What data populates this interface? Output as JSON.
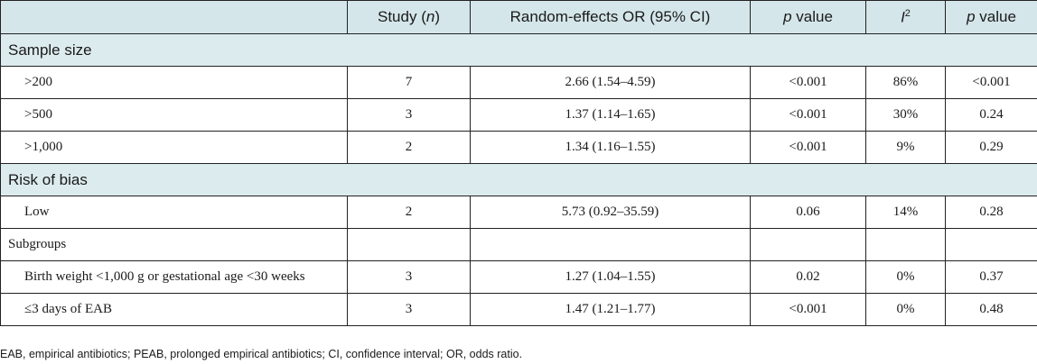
{
  "header": {
    "study_label": "Study (",
    "study_n": "n",
    "study_close": ")",
    "or_label": "Random-effects OR (95% CI)",
    "p_italic": "p",
    "p_suffix": " value",
    "i_italic": "I",
    "i_sup": "2",
    "p2_italic": "p",
    "p2_suffix": " value"
  },
  "sections": [
    {
      "title": "Sample size",
      "rows": [
        {
          "label": ">200",
          "study": "7",
          "or": "2.66 (1.54–4.59)",
          "p": "<0.001",
          "i2": "86%",
          "p2": "<0.001"
        },
        {
          "label": ">500",
          "study": "3",
          "or": "1.37 (1.14–1.65)",
          "p": "<0.001",
          "i2": "30%",
          "p2": "0.24"
        },
        {
          "label": ">1,000",
          "study": "2",
          "or": "1.34 (1.16–1.55)",
          "p": "<0.001",
          "i2": "9%",
          "p2": "0.29"
        }
      ]
    },
    {
      "title": "Risk of bias",
      "rows": [
        {
          "label": "Low",
          "study": "2",
          "or": "5.73 (0.92–35.59)",
          "p": "0.06",
          "i2": "14%",
          "p2": "0.28"
        }
      ]
    }
  ],
  "subgroups": {
    "title": "Subgroups",
    "rows": [
      {
        "label": "Birth weight <1,000 g or gestational age <30 weeks",
        "study": "3",
        "or": "1.27 (1.04–1.55)",
        "p": "0.02",
        "i2": "0%",
        "p2": "0.37"
      },
      {
        "label": "≤3 days of EAB",
        "study": "3",
        "or": "1.47 (1.21–1.77)",
        "p": "<0.001",
        "i2": "0%",
        "p2": "0.48"
      }
    ]
  },
  "footnote": "EAB, empirical antibiotics; PEAB, prolonged empirical antibiotics; CI, confidence interval; OR, odds ratio."
}
